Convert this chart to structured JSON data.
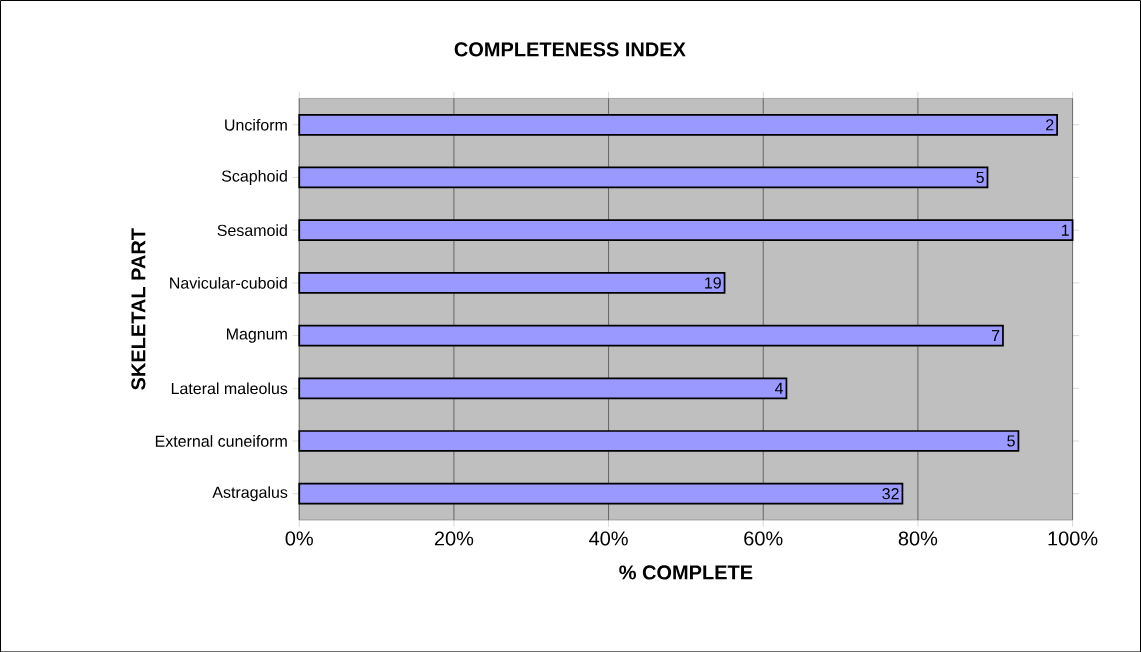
{
  "chart_data": {
    "type": "bar",
    "orientation": "horizontal",
    "title": "COMPLETENESS INDEX",
    "xlabel": "% COMPLETE",
    "ylabel": "SKELETAL PART",
    "categories": [
      "Unciform",
      "Scaphoid",
      "Sesamoid",
      "Navicular-cuboid",
      "Magnum",
      "Lateral maleolus",
      "External cuneiform",
      "Astragalus"
    ],
    "values": [
      98,
      89,
      100,
      55,
      91,
      63,
      93,
      78
    ],
    "annotations": [
      {
        "text": "2",
        "x": 98,
        "y": "Unciform"
      },
      {
        "text": "5",
        "x": 89,
        "y": "Scaphoid"
      },
      {
        "text": "1",
        "x": 100,
        "y": "Sesamoid"
      },
      {
        "text": "19",
        "x": 55,
        "y": "Navicular-cuboid"
      },
      {
        "text": "7",
        "x": 91,
        "y": "Magnum"
      },
      {
        "text": "4",
        "x": 63,
        "y": "Lateral maleolus"
      },
      {
        "text": "5",
        "x": 93,
        "y": "External cuneiform"
      },
      {
        "text": "32",
        "x": 78,
        "y": "Astragalus"
      }
    ],
    "color": "#9999ff",
    "xlim": [
      0,
      100
    ],
    "xticks": [
      {
        "value": 0,
        "label": "0%"
      },
      {
        "value": 20,
        "label": "20%"
      },
      {
        "value": 40,
        "label": "40%"
      },
      {
        "value": 60,
        "label": "60%"
      },
      {
        "value": 80,
        "label": "80%"
      },
      {
        "value": 100,
        "label": "100%"
      }
    ],
    "grid": "x"
  }
}
